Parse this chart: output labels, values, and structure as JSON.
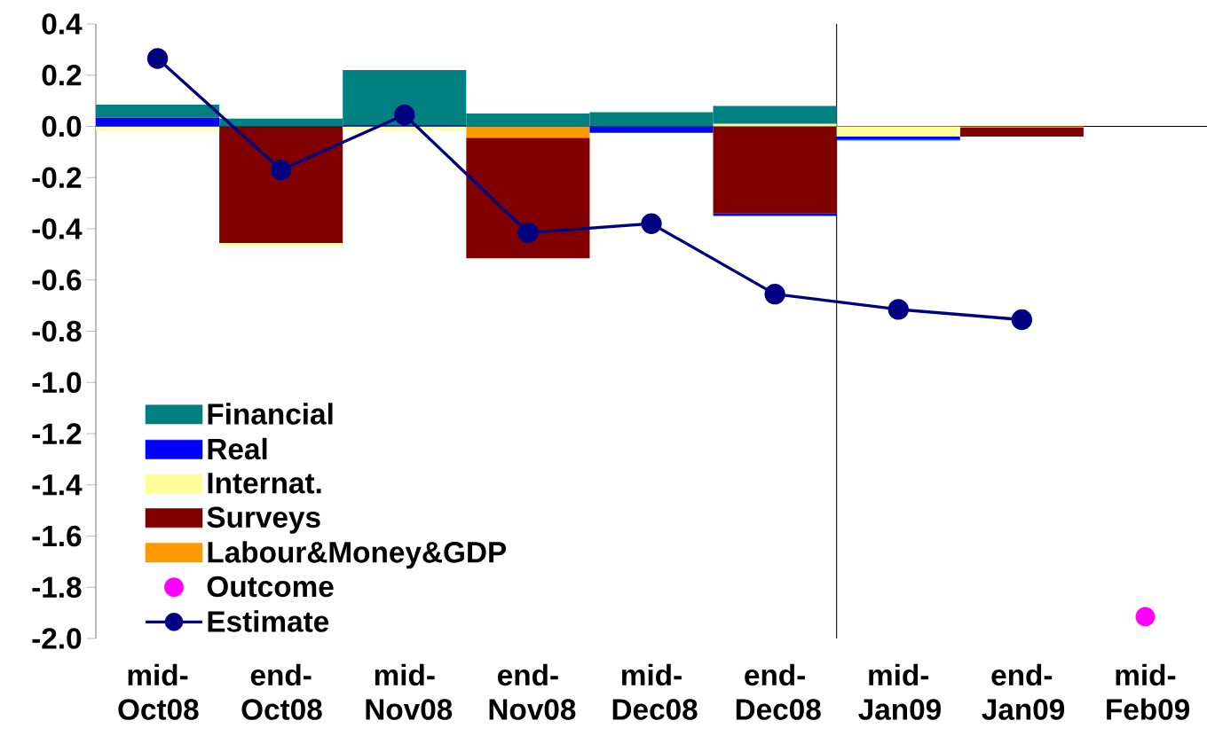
{
  "chart_data": {
    "type": "bar",
    "stacked": true,
    "categories": [
      "mid-Oct08",
      "end-Oct08",
      "mid-Nov08",
      "end-Nov08",
      "mid-Dec08",
      "end-Dec08",
      "mid-Jan09",
      "end-Jan09",
      "mid-Feb09"
    ],
    "series": [
      {
        "name": "Labour&Money&GDP",
        "color": "#ff9900",
        "values": [
          null,
          null,
          null,
          -0.045,
          null,
          null,
          null,
          -0.005,
          null
        ]
      },
      {
        "name": "Surveys",
        "color": "#800000",
        "values": [
          null,
          -0.455,
          null,
          -0.47,
          null,
          -0.34,
          null,
          -0.035,
          null
        ]
      },
      {
        "name": "Internat.",
        "color": "#ffff99",
        "values": [
          -0.015,
          -0.01,
          -0.015,
          null,
          null,
          0.01,
          -0.04,
          null,
          null
        ]
      },
      {
        "name": "Real",
        "color": "#0000ff",
        "values": [
          0.035,
          null,
          0.005,
          null,
          -0.025,
          -0.01,
          -0.01,
          null,
          null
        ]
      },
      {
        "name": "Financial",
        "color": "#008080",
        "values": [
          0.05,
          0.03,
          0.215,
          0.05,
          0.055,
          0.07,
          -0.005,
          null,
          null
        ]
      },
      {
        "name": "Outcome",
        "type": "scatter",
        "color": "#ff00ff",
        "values": [
          null,
          null,
          null,
          null,
          null,
          null,
          null,
          null,
          -1.915
        ]
      },
      {
        "name": "Estimate",
        "type": "line",
        "marker": "circle",
        "color": "#000080",
        "values": [
          0.265,
          -0.17,
          0.045,
          -0.415,
          -0.38,
          -0.655,
          -0.715,
          -0.755,
          null
        ]
      }
    ],
    "ylim": [
      -2.0,
      0.4
    ],
    "yticks": [
      0.4,
      0.2,
      {
        "value": 0,
        "label": "0.0"
      },
      -0.2,
      -0.4,
      -0.6,
      -0.8,
      {
        "value": -1.0,
        "label": "-1.0"
      },
      -1.2,
      -1.4,
      -1.6,
      -1.8,
      {
        "value": -2.0,
        "label": "-2.0"
      }
    ],
    "legend": "bottom left"
  }
}
